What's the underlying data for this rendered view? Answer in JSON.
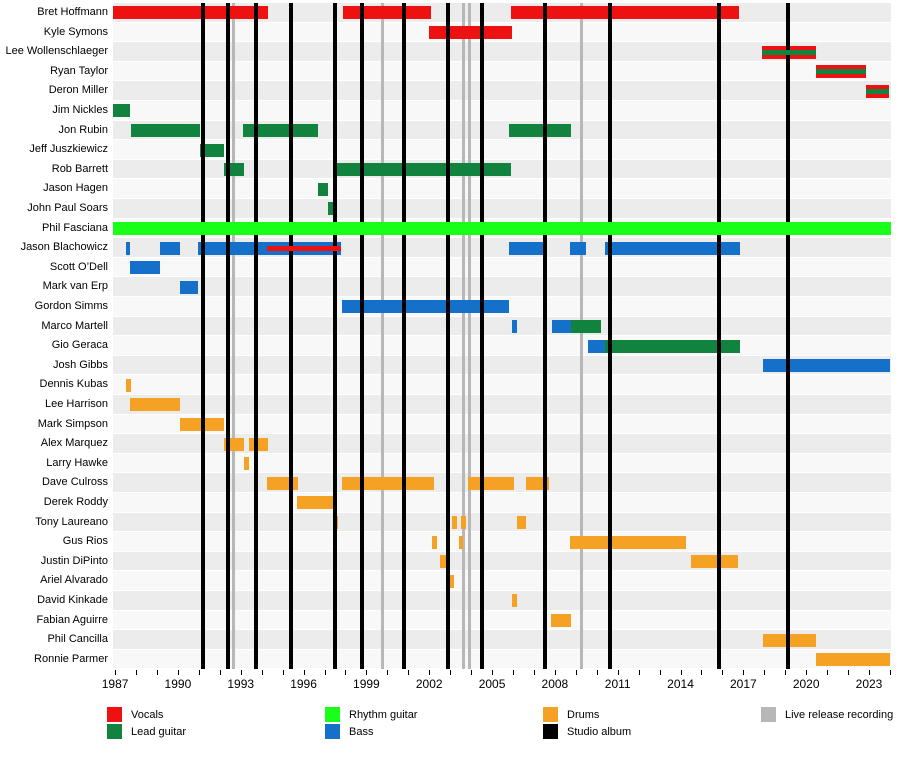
{
  "chart_data": {
    "type": "timeline-gantt",
    "x_axis": {
      "start": 1986.9,
      "end": 2024.05,
      "labeled_ticks": [
        1987,
        1990,
        1993,
        1996,
        1999,
        2002,
        2005,
        2008,
        2011,
        2014,
        2017,
        2020,
        2023
      ],
      "minor_tick_interval": 1
    },
    "colors": {
      "vocals": "#ee1111",
      "lead_guitar": "#12823f",
      "rhythm_guitar": "#1aff1a",
      "bass": "#1470c9",
      "drums": "#f5a124",
      "studio_album": "#000000",
      "live_release": "#b7b7b7",
      "row_even": "#ececec",
      "row_odd": "#f8f8f8"
    },
    "members": [
      {
        "name": "Bret Hoffmann",
        "bars": [
          {
            "role": "vocals",
            "start": 1986.9,
            "end": 1994.3
          },
          {
            "role": "vocals",
            "start": 1997.9,
            "end": 2002.1
          },
          {
            "role": "vocals",
            "start": 2005.9,
            "end": 2016.8
          }
        ]
      },
      {
        "name": "Kyle Symons",
        "bars": [
          {
            "role": "vocals",
            "start": 2002.0,
            "end": 2005.95
          }
        ]
      },
      {
        "name": "Lee Wollenschlaeger",
        "bars": [
          {
            "role": "vocals",
            "start": 2017.9,
            "end": 2020.45
          }
        ],
        "overlays": [
          {
            "role": "lead_guitar",
            "start": 2017.9,
            "end": 2020.45
          }
        ]
      },
      {
        "name": "Ryan Taylor",
        "bars": [
          {
            "role": "vocals",
            "start": 2020.45,
            "end": 2022.85
          }
        ],
        "overlays": [
          {
            "role": "lead_guitar",
            "start": 2020.45,
            "end": 2022.85
          }
        ]
      },
      {
        "name": "Deron Miller",
        "bars": [
          {
            "role": "vocals",
            "start": 2022.85,
            "end": 2023.95
          }
        ],
        "overlays": [
          {
            "role": "lead_guitar",
            "start": 2022.85,
            "end": 2023.95
          }
        ]
      },
      {
        "name": "Jim Nickles",
        "bars": [
          {
            "role": "lead_guitar",
            "start": 1986.9,
            "end": 1987.7
          }
        ]
      },
      {
        "name": "Jon Rubin",
        "bars": [
          {
            "role": "lead_guitar",
            "start": 1987.75,
            "end": 1991.05
          },
          {
            "role": "lead_guitar",
            "start": 1993.1,
            "end": 1996.7
          },
          {
            "role": "lead_guitar",
            "start": 2005.8,
            "end": 2008.75
          }
        ]
      },
      {
        "name": "Jeff Juszkiewicz",
        "bars": [
          {
            "role": "lead_guitar",
            "start": 1991.05,
            "end": 1992.2
          }
        ]
      },
      {
        "name": "Rob Barrett",
        "bars": [
          {
            "role": "lead_guitar",
            "start": 1992.2,
            "end": 1993.15
          },
          {
            "role": "lead_guitar",
            "start": 1997.55,
            "end": 2005.9
          }
        ]
      },
      {
        "name": "Jason Hagen",
        "bars": [
          {
            "role": "lead_guitar",
            "start": 1996.7,
            "end": 1997.15
          }
        ]
      },
      {
        "name": "John Paul Soars",
        "bars": [
          {
            "role": "lead_guitar",
            "start": 1997.15,
            "end": 1997.6
          }
        ]
      },
      {
        "name": "Phil Fasciana",
        "bars": [
          {
            "role": "rhythm_guitar",
            "start": 1986.9,
            "end": 2024.05,
            "front": true
          }
        ]
      },
      {
        "name": "Jason Blachowicz",
        "bars": [
          {
            "role": "bass",
            "start": 1987.5,
            "end": 1987.7
          },
          {
            "role": "bass",
            "start": 1989.15,
            "end": 1990.1
          },
          {
            "role": "bass",
            "start": 1990.95,
            "end": 1997.8
          },
          {
            "role": "bass",
            "start": 2005.8,
            "end": 2007.6
          },
          {
            "role": "bass",
            "start": 2008.7,
            "end": 2009.5
          },
          {
            "role": "bass",
            "start": 2010.4,
            "end": 2016.85
          }
        ],
        "overlays": [
          {
            "role": "vocals",
            "start": 1994.25,
            "end": 1997.8
          }
        ]
      },
      {
        "name": "Scott O’Dell",
        "bars": [
          {
            "role": "bass",
            "start": 1987.7,
            "end": 1989.15
          }
        ]
      },
      {
        "name": "Mark van Erp",
        "bars": [
          {
            "role": "bass",
            "start": 1990.1,
            "end": 1990.95
          }
        ]
      },
      {
        "name": "Gordon Simms",
        "bars": [
          {
            "role": "bass",
            "start": 1997.85,
            "end": 2005.8
          }
        ]
      },
      {
        "name": "Marco Martell",
        "bars": [
          {
            "role": "bass",
            "start": 2005.95,
            "end": 2006.2
          },
          {
            "role": "bass",
            "start": 2007.85,
            "end": 2008.75
          },
          {
            "role": "lead_guitar",
            "start": 2008.75,
            "end": 2010.2
          }
        ]
      },
      {
        "name": "Gio Geraca",
        "bars": [
          {
            "role": "bass",
            "start": 2009.6,
            "end": 2010.4
          },
          {
            "role": "lead_guitar",
            "start": 2010.4,
            "end": 2016.85
          }
        ]
      },
      {
        "name": "Josh Gibbs",
        "bars": [
          {
            "role": "bass",
            "start": 2017.95,
            "end": 2024.0
          }
        ]
      },
      {
        "name": "Dennis Kubas",
        "bars": [
          {
            "role": "drums",
            "start": 1987.5,
            "end": 1987.75
          }
        ]
      },
      {
        "name": "Lee Harrison",
        "bars": [
          {
            "role": "drums",
            "start": 1987.7,
            "end": 1990.1
          }
        ]
      },
      {
        "name": "Mark Simpson",
        "bars": [
          {
            "role": "drums",
            "start": 1990.1,
            "end": 1992.2
          }
        ]
      },
      {
        "name": "Alex Marquez",
        "bars": [
          {
            "role": "drums",
            "start": 1992.2,
            "end": 1993.15
          },
          {
            "role": "drums",
            "start": 1993.4,
            "end": 1994.3
          }
        ]
      },
      {
        "name": "Larry Hawke",
        "bars": [
          {
            "role": "drums",
            "start": 1993.15,
            "end": 1993.4
          }
        ]
      },
      {
        "name": "Dave Culross",
        "bars": [
          {
            "role": "drums",
            "start": 1994.25,
            "end": 1995.75
          },
          {
            "role": "drums",
            "start": 1997.85,
            "end": 2002.25
          },
          {
            "role": "drums",
            "start": 2003.85,
            "end": 2006.05
          },
          {
            "role": "drums",
            "start": 2006.6,
            "end": 2007.7
          }
        ]
      },
      {
        "name": "Derek Roddy",
        "bars": [
          {
            "role": "drums",
            "start": 1995.7,
            "end": 1997.4
          }
        ]
      },
      {
        "name": "Tony Laureano",
        "bars": [
          {
            "role": "drums",
            "start": 1997.4,
            "end": 1997.65
          },
          {
            "role": "drums",
            "start": 2003.1,
            "end": 2003.35
          },
          {
            "role": "drums",
            "start": 2003.5,
            "end": 2003.75
          },
          {
            "role": "drums",
            "start": 2006.2,
            "end": 2006.6
          }
        ]
      },
      {
        "name": "Gus Rios",
        "bars": [
          {
            "role": "drums",
            "start": 2002.15,
            "end": 2002.35
          },
          {
            "role": "drums",
            "start": 2003.4,
            "end": 2003.6
          },
          {
            "role": "drums",
            "start": 2008.7,
            "end": 2014.25
          }
        ]
      },
      {
        "name": "Justin DiPinto",
        "bars": [
          {
            "role": "drums",
            "start": 2002.5,
            "end": 2002.9
          },
          {
            "role": "drums",
            "start": 2014.5,
            "end": 2016.75
          }
        ]
      },
      {
        "name": "Ariel Alvarado",
        "bars": [
          {
            "role": "drums",
            "start": 2002.85,
            "end": 2003.2
          }
        ]
      },
      {
        "name": "David Kinkade",
        "bars": [
          {
            "role": "drums",
            "start": 2005.95,
            "end": 2006.2
          }
        ]
      },
      {
        "name": "Fabian Aguirre",
        "bars": [
          {
            "role": "drums",
            "start": 2007.8,
            "end": 2008.75
          }
        ]
      },
      {
        "name": "Phil Cancilla",
        "bars": [
          {
            "role": "drums",
            "start": 2017.95,
            "end": 2020.45
          }
        ]
      },
      {
        "name": "Ronnie Parmer",
        "bars": [
          {
            "role": "drums",
            "start": 2020.45,
            "end": 2024.0
          }
        ]
      }
    ],
    "studio_albums": [
      1991.2,
      1992.4,
      1993.75,
      1995.4,
      1997.5,
      1998.8,
      2000.8,
      2002.9,
      2004.5,
      2007.55,
      2010.65,
      2015.85,
      2019.15
    ],
    "live_releases": [
      1992.65,
      1999.75,
      2003.65,
      2003.9,
      2009.25
    ]
  },
  "legend": {
    "items": [
      {
        "label": "Vocals",
        "role": "vocals",
        "col": 0,
        "row": 0
      },
      {
        "label": "Lead guitar",
        "role": "lead_guitar",
        "col": 0,
        "row": 1
      },
      {
        "label": "Rhythm guitar",
        "role": "rhythm_guitar",
        "col": 1,
        "row": 0
      },
      {
        "label": "Bass",
        "role": "bass",
        "col": 1,
        "row": 1
      },
      {
        "label": "Drums",
        "role": "drums",
        "col": 2,
        "row": 0
      },
      {
        "label": "Studio album",
        "role": "studio_album",
        "col": 2,
        "row": 1
      },
      {
        "label": "Live release recording",
        "role": "live_release",
        "col": 3,
        "row": 0
      }
    ]
  }
}
